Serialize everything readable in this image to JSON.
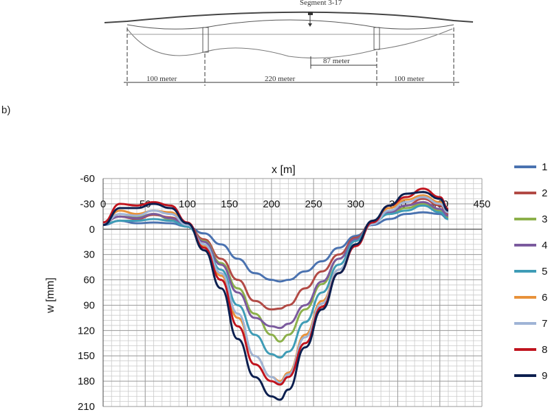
{
  "diagram": {
    "segment_label": "Segment 3-17",
    "spans": [
      "100 meter",
      "220 meter",
      "100 meter"
    ],
    "sub_dim": "87 meter"
  },
  "panel_label": "b)",
  "chart_data": {
    "type": "line",
    "xlabel": "x  [m]",
    "ylabel": "w    [mm]",
    "xlim": [
      0,
      450
    ],
    "ylim": [
      -60,
      210
    ],
    "y_inverted": true,
    "x_ticks": [
      0,
      50,
      100,
      150,
      200,
      250,
      300,
      350,
      400,
      450
    ],
    "y_ticks": [
      -60,
      -30,
      0,
      30,
      60,
      90,
      120,
      150,
      180,
      210
    ],
    "grid": true,
    "legend_position": "right",
    "x": [
      0,
      20,
      40,
      60,
      80,
      100,
      120,
      140,
      160,
      180,
      200,
      210,
      220,
      240,
      260,
      280,
      300,
      320,
      340,
      360,
      380,
      400,
      410
    ],
    "series": [
      {
        "name": "1",
        "color": "#4a72b0",
        "values": [
          -5,
          -10,
          -7,
          -8,
          -7,
          -3,
          5,
          18,
          35,
          52,
          60,
          62,
          60,
          50,
          38,
          22,
          8,
          -5,
          -12,
          -18,
          -20,
          -18,
          -12
        ]
      },
      {
        "name": "2",
        "color": "#b24a45",
        "values": [
          -8,
          -15,
          -12,
          -17,
          -14,
          -5,
          12,
          35,
          60,
          85,
          95,
          94,
          90,
          70,
          50,
          30,
          10,
          -8,
          -20,
          -28,
          -36,
          -28,
          -18
        ]
      },
      {
        "name": "3",
        "color": "#8cb04a",
        "values": [
          -8,
          -15,
          -14,
          -18,
          -12,
          -4,
          14,
          40,
          70,
          100,
          125,
          133,
          125,
          95,
          65,
          35,
          12,
          -8,
          -18,
          -25,
          -30,
          -22,
          -14
        ]
      },
      {
        "name": "4",
        "color": "#7b5a9e",
        "values": [
          -8,
          -15,
          -13,
          -18,
          -13,
          -4,
          15,
          42,
          75,
          105,
          115,
          117,
          112,
          90,
          62,
          35,
          12,
          -8,
          -20,
          -28,
          -32,
          -24,
          -16
        ]
      },
      {
        "name": "5",
        "color": "#3f9cb6",
        "values": [
          -6,
          -10,
          -10,
          -12,
          -10,
          -3,
          18,
          48,
          90,
          125,
          148,
          152,
          145,
          110,
          75,
          42,
          14,
          -8,
          -18,
          -22,
          -28,
          -20,
          -12
        ]
      },
      {
        "name": "6",
        "color": "#e8923a",
        "values": [
          -8,
          -22,
          -18,
          -22,
          -20,
          -6,
          20,
          55,
          105,
          150,
          175,
          180,
          170,
          125,
          85,
          48,
          18,
          -8,
          -25,
          -35,
          -40,
          -32,
          -22
        ]
      },
      {
        "name": "7",
        "color": "#9fb4d6",
        "values": [
          -7,
          -18,
          -16,
          -22,
          -18,
          -5,
          18,
          52,
          100,
          150,
          175,
          182,
          172,
          128,
          88,
          48,
          18,
          -6,
          -22,
          -32,
          -38,
          -30,
          -20
        ]
      },
      {
        "name": "8",
        "color": "#c0141e",
        "values": [
          -8,
          -30,
          -28,
          -32,
          -28,
          -8,
          22,
          60,
          115,
          160,
          180,
          184,
          175,
          135,
          92,
          52,
          20,
          -8,
          -28,
          -38,
          -48,
          -38,
          -24
        ]
      },
      {
        "name": "9",
        "color": "#0c1f4f",
        "values": [
          -5,
          -25,
          -25,
          -30,
          -25,
          -7,
          25,
          70,
          130,
          175,
          198,
          202,
          190,
          140,
          95,
          52,
          18,
          -10,
          -28,
          -42,
          -44,
          -36,
          -22
        ]
      }
    ]
  }
}
